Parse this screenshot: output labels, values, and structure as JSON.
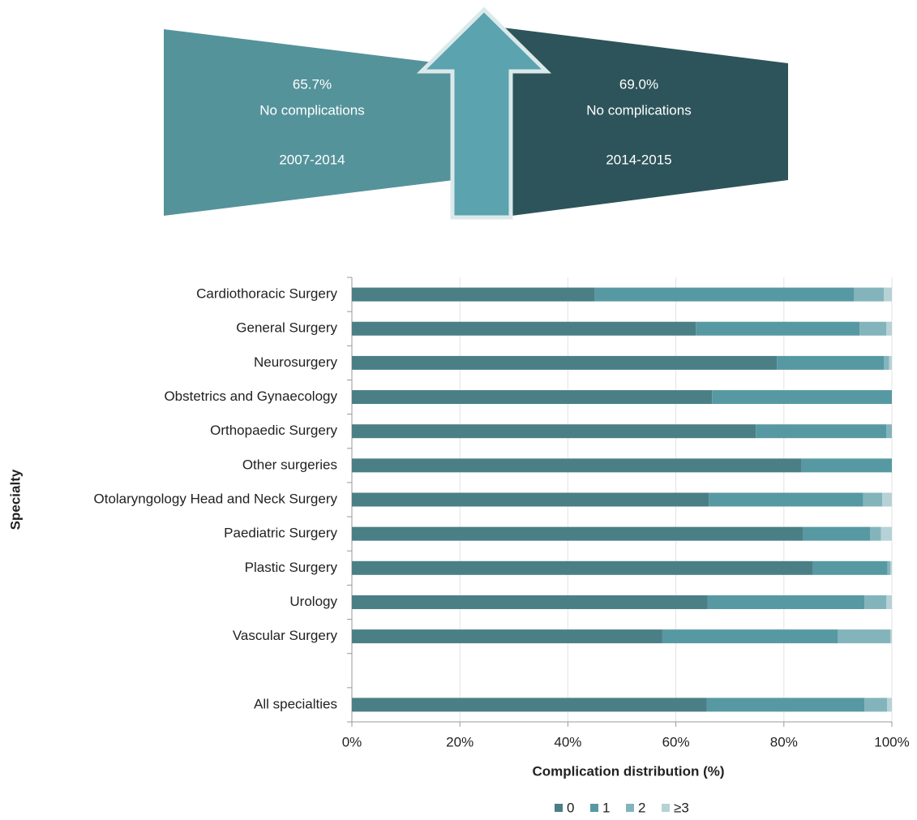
{
  "infographic": {
    "panels": [
      {
        "value": "65.7%",
        "label": "No complications",
        "period": "2007-2014"
      },
      {
        "value": "69.0%",
        "label": "No complications",
        "period": "2014-2015"
      }
    ]
  },
  "chart_data": {
    "type": "stacked_barh",
    "categories": [
      "Cardiothoracic Surgery",
      "General Surgery",
      "Neurosurgery",
      "Obstetrics and Gynaecology",
      "Orthopaedic Surgery",
      "Other surgeries",
      "Otolaryngology Head and Neck Surgery",
      "Paediatric Surgery",
      "Plastic Surgery",
      "Urology",
      "Vascular Surgery",
      null,
      "All specialties"
    ],
    "series": [
      {
        "name": "0",
        "color": "#4a7f86",
        "values": [
          45,
          63.7,
          78.7,
          66.7,
          74.8,
          83.3,
          66.1,
          83.6,
          85.4,
          65.9,
          57.5,
          null,
          65.7
        ]
      },
      {
        "name": "1",
        "color": "#5799a2",
        "values": [
          48,
          30.3,
          19.8,
          33.3,
          24.2,
          16.7,
          28.6,
          12.4,
          13.8,
          29,
          32.5,
          null,
          29.2
        ]
      },
      {
        "name": "2",
        "color": "#84b4bb",
        "values": [
          5.5,
          5,
          1,
          0,
          1,
          0,
          3.5,
          2,
          0.5,
          4.1,
          9.7,
          null,
          4.2
        ]
      },
      {
        "name": "≥3",
        "color": "#b6d2d6",
        "values": [
          1.5,
          1,
          0.5,
          0,
          0,
          0,
          1.8,
          2,
          0.3,
          1,
          0.3,
          null,
          0.9
        ]
      }
    ],
    "xlim": [
      0,
      100
    ],
    "xticks": [
      {
        "value": 0,
        "label": "0%"
      },
      {
        "value": 20,
        "label": "20%"
      },
      {
        "value": 40,
        "label": "40%"
      },
      {
        "value": 60,
        "label": "60%"
      },
      {
        "value": 80,
        "label": "80%"
      },
      {
        "value": 100,
        "label": "100%"
      }
    ],
    "xlabel": "Complication distribution (%)",
    "ylabel": "Specialty",
    "grid": true,
    "legend": "bottom"
  }
}
